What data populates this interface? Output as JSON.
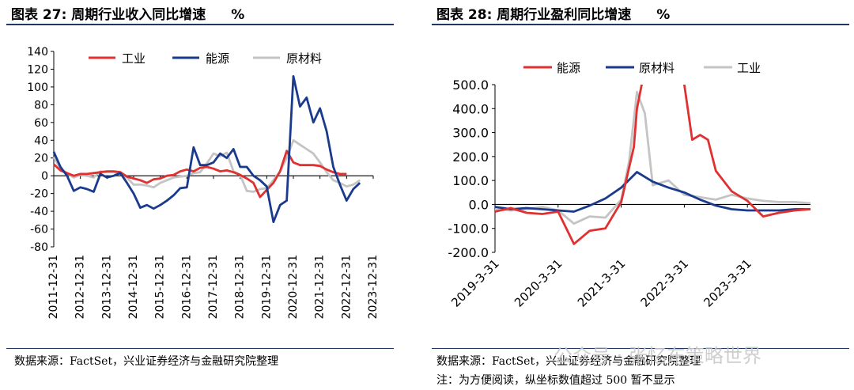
{
  "watermark": "公众号 · 张忆东策略世界",
  "colors": {
    "red": "#e03030",
    "blue": "#1a3a8c",
    "gray": "#c4c4c4"
  },
  "chart_data": [
    {
      "type": "line",
      "fig_label": "图表 27:",
      "title": "周期行业收入同比增速",
      "unit": "%",
      "ylim": [
        -80,
        140
      ],
      "yticks": [
        "140",
        "120",
        "100",
        "80",
        "60",
        "40",
        "20",
        "0",
        "-20",
        "-40",
        "-60",
        "-80"
      ],
      "ytick_values": [
        140,
        120,
        100,
        80,
        60,
        40,
        20,
        0,
        -20,
        -40,
        -60,
        -80
      ],
      "xlim": [
        0,
        48
      ],
      "xticks": [
        "2011-12-31",
        "2012-12-31",
        "2013-12-31",
        "2014-12-31",
        "2015-12-31",
        "2016-12-31",
        "2017-12-31",
        "2018-12-31",
        "2019-12-31",
        "2020-12-31",
        "2021-12-31",
        "2022-12-31",
        "2023-12-31"
      ],
      "legend": [
        "工业",
        "能源",
        "原材料"
      ],
      "series": [
        {
          "name": "工业",
          "color": "red",
          "values": [
            13,
            6,
            3,
            0,
            2,
            2,
            3,
            4,
            5,
            5,
            4,
            -1,
            -3,
            -5,
            -8,
            -4,
            -3,
            0,
            1,
            5,
            7,
            5,
            9,
            10,
            8,
            5,
            6,
            4,
            1,
            -3,
            -8,
            -24,
            -16,
            -8,
            5,
            28,
            15,
            12,
            12,
            12,
            11,
            7,
            4,
            2,
            2
          ]
        },
        {
          "name": "能源",
          "color": "blue",
          "values": [
            27,
            10,
            0,
            -17,
            -13,
            -15,
            -18,
            2,
            -2,
            0,
            3,
            -8,
            -20,
            -36,
            -33,
            -37,
            -33,
            -28,
            -22,
            -14,
            -13,
            32,
            12,
            12,
            15,
            25,
            20,
            30,
            10,
            10,
            0,
            -5,
            -12,
            -52,
            -33,
            -28,
            112,
            78,
            88,
            60,
            76,
            50,
            10,
            -10,
            -28,
            -15,
            -8
          ]
        },
        {
          "name": "原材料",
          "color": "gray",
          "values": [
            21,
            8,
            3,
            -2,
            1,
            0,
            -2,
            5,
            4,
            4,
            2,
            -2,
            -10,
            -10,
            -11,
            -13,
            -8,
            -5,
            -2,
            -1,
            0,
            3,
            4,
            14,
            25,
            22,
            26,
            5,
            1,
            -17,
            -18,
            -15,
            -14,
            -5,
            5,
            20,
            40,
            35,
            30,
            25,
            15,
            4,
            -5,
            -8,
            -12,
            -10,
            -5
          ]
        }
      ]
    },
    {
      "type": "line",
      "fig_label": "图表 28:",
      "title": "周期行业盈利同比增速",
      "unit": "%",
      "ylim": [
        -200,
        500
      ],
      "yticks": [
        "500.0",
        "400.0",
        "300.0",
        "200.0",
        "100.0",
        "0.0",
        "-100.0",
        "-200.0"
      ],
      "ytick_values": [
        500,
        400,
        300,
        200,
        100,
        0,
        -100,
        -200
      ],
      "xlim": [
        0,
        20
      ],
      "xticks": [
        "2019-3-31",
        "2020-3-31",
        "2021-3-31",
        "2022-3-31",
        "2023-3-31"
      ],
      "legend": [
        "能源",
        "原材料",
        "工业"
      ],
      "note": "注：为方便阅读，纵坐标数值超过 500 暂不显示",
      "series": [
        {
          "name": "能源",
          "color": "red",
          "x": [
            0,
            1,
            2,
            3,
            4,
            5,
            6,
            7,
            8,
            8.8,
            9,
            9.3,
            9.6
          ],
          "values": [
            -30,
            -15,
            -35,
            -40,
            -30,
            -165,
            -110,
            -100,
            10,
            240,
            400,
            500,
            520
          ],
          "x2": [
            12,
            12,
            12.5,
            13,
            13.5,
            14,
            15,
            16,
            17,
            18,
            19,
            20
          ],
          "values2": [
            520,
            500,
            270,
            290,
            270,
            140,
            55,
            15,
            -50,
            -35,
            -25,
            -20
          ]
        },
        {
          "name": "原材料",
          "color": "blue",
          "x": [
            0,
            1,
            2,
            3,
            4,
            5,
            6,
            7,
            8,
            9,
            10,
            11,
            12,
            13,
            14,
            15,
            16,
            17,
            18,
            19,
            20
          ],
          "values": [
            -10,
            -20,
            -15,
            -20,
            -25,
            -30,
            -5,
            25,
            70,
            135,
            95,
            70,
            50,
            20,
            -5,
            -20,
            -25,
            -25,
            -25,
            -20,
            -20
          ]
        },
        {
          "name": "工业",
          "color": "gray",
          "x": [
            0,
            1,
            2,
            3,
            4,
            5,
            6,
            7,
            8,
            8.5,
            9,
            9.5,
            10,
            11,
            12,
            13,
            14,
            15,
            16,
            17,
            18,
            19,
            20
          ],
          "values": [
            -20,
            -25,
            -20,
            -10,
            -25,
            -80,
            -50,
            -55,
            20,
            180,
            470,
            380,
            80,
            100,
            40,
            30,
            20,
            40,
            25,
            15,
            10,
            10,
            5
          ]
        }
      ]
    }
  ],
  "footer": {
    "left_source": "数据来源：FactSet，兴业证券经济与金融研究院整理",
    "right_source": "数据来源：FactSet，兴业证券经济与金融研究院整理"
  }
}
